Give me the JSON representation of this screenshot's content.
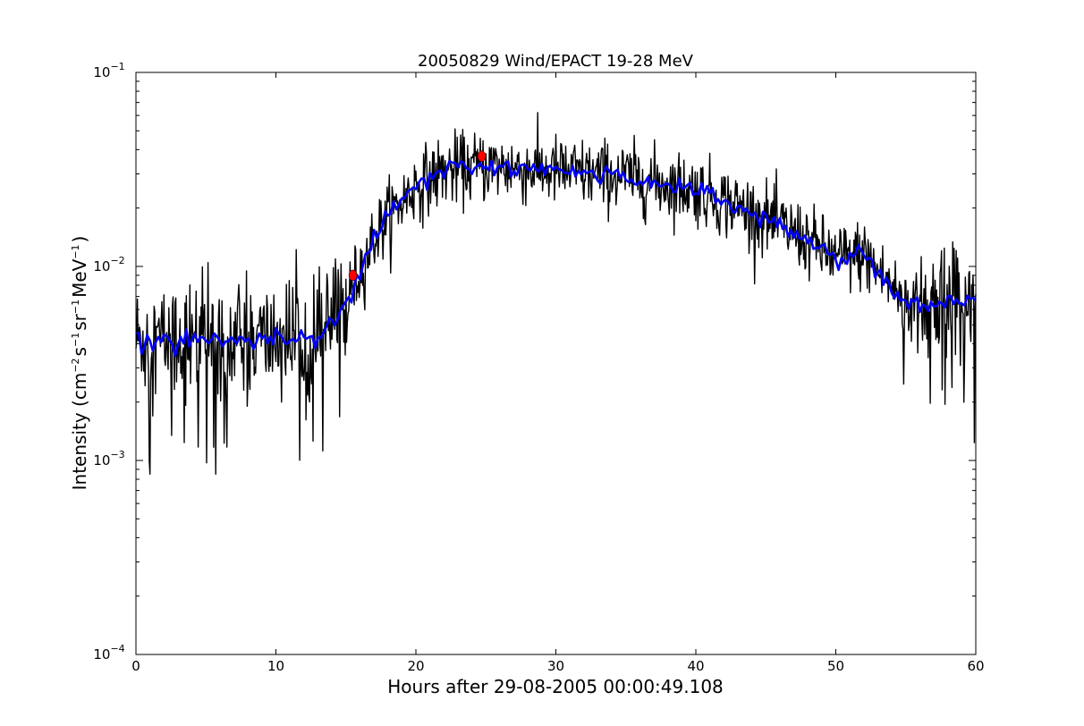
{
  "chart_data": {
    "type": "line",
    "title": "20050829 Wind/EPACT 19-28 MeV",
    "xlabel": "Hours after 29-08-2005 00:00:49.108",
    "ylabel": {
      "prefix": "Intensity (cm",
      "sup1": "−2",
      "mid1": "s",
      "sup2": "−1",
      "mid2": "sr",
      "sup3": "−1",
      "mid3": "MeV",
      "sup4": "−1",
      "suffix": ")"
    },
    "xlim": [
      0,
      60
    ],
    "ylim": [
      0.0001,
      0.1
    ],
    "yscale": "log",
    "grid": false,
    "x_ticks": [
      "0",
      "10",
      "20",
      "30",
      "40",
      "50",
      "60"
    ],
    "y_ticks": [
      {
        "base": "10",
        "exp": "−4",
        "value": 0.0001
      },
      {
        "base": "10",
        "exp": "−3",
        "value": 0.001
      },
      {
        "base": "10",
        "exp": "−2",
        "value": 0.01
      },
      {
        "base": "10",
        "exp": "−1",
        "value": 0.1
      }
    ],
    "series": [
      {
        "color": "#000000",
        "style": "raw-noisy",
        "envelope": [
          [
            0,
            0.0042
          ],
          [
            10,
            0.0042
          ],
          [
            13,
            0.0045
          ],
          [
            14.5,
            0.0055
          ],
          [
            16,
            0.0095
          ],
          [
            17,
            0.014
          ],
          [
            18,
            0.018
          ],
          [
            20,
            0.026
          ],
          [
            22,
            0.031
          ],
          [
            25,
            0.033
          ],
          [
            30,
            0.031
          ],
          [
            35,
            0.029
          ],
          [
            40,
            0.025
          ],
          [
            44,
            0.019
          ],
          [
            47,
            0.015
          ],
          [
            50,
            0.011
          ],
          [
            52,
            0.0115
          ],
          [
            53,
            0.0095
          ],
          [
            55,
            0.0065
          ],
          [
            60,
            0.0065
          ]
        ]
      },
      {
        "color": "#0000ff",
        "style": "smoothed",
        "envelope": [
          [
            0,
            0.0042
          ],
          [
            10,
            0.0042
          ],
          [
            13,
            0.0045
          ],
          [
            14.5,
            0.0055
          ],
          [
            16,
            0.0095
          ],
          [
            17,
            0.014
          ],
          [
            18,
            0.018
          ],
          [
            20,
            0.026
          ],
          [
            22,
            0.031
          ],
          [
            25,
            0.033
          ],
          [
            30,
            0.031
          ],
          [
            35,
            0.029
          ],
          [
            40,
            0.025
          ],
          [
            44,
            0.019
          ],
          [
            47,
            0.015
          ],
          [
            50,
            0.011
          ],
          [
            52,
            0.0115
          ],
          [
            53,
            0.0095
          ],
          [
            55,
            0.0065
          ],
          [
            60,
            0.0065
          ]
        ]
      }
    ],
    "markers": [
      {
        "x": 15.5,
        "y": 0.009,
        "color": "#ff0000"
      },
      {
        "x": 24.7,
        "y": 0.037,
        "color": "#ff0000"
      }
    ]
  }
}
